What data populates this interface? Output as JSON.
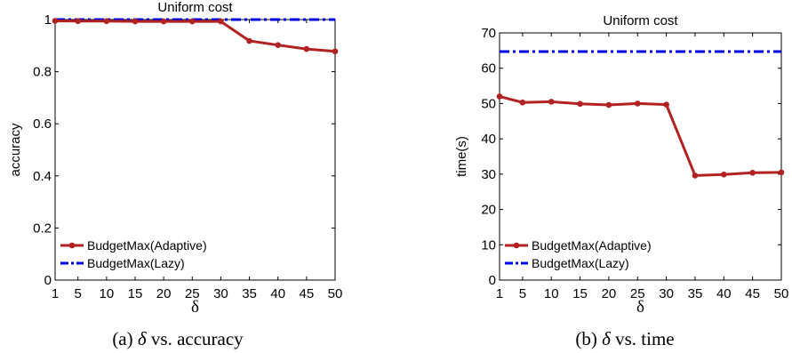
{
  "chart_data": [
    {
      "type": "line",
      "title": "Uniform cost",
      "xlabel": "δ",
      "ylabel": "accuracy",
      "x": [
        1,
        5,
        10,
        15,
        20,
        25,
        30,
        35,
        40,
        45,
        50
      ],
      "xlim": [
        1,
        50
      ],
      "ylim": [
        0,
        1
      ],
      "yticks": [
        0,
        0.2,
        0.4,
        0.6,
        0.8,
        1
      ],
      "ytick_labels": [
        "0",
        "0.2",
        "0.4",
        "0.6",
        "0.8",
        "1"
      ],
      "series": [
        {
          "name": "BudgetMax(Adaptive)",
          "color": "#b22222",
          "style": "solid-markers",
          "values": [
            0.995,
            0.994,
            0.994,
            0.993,
            0.993,
            0.993,
            0.993,
            0.918,
            0.902,
            0.887,
            0.878
          ]
        },
        {
          "name": "BudgetMax(Lazy)",
          "color": "#0000e0",
          "style": "dash-dot",
          "values": [
            1.0,
            1.0,
            1.0,
            1.0,
            1.0,
            1.0,
            1.0,
            1.0,
            1.0,
            1.0,
            1.0
          ]
        }
      ],
      "legend": "bottom-left",
      "grid": false,
      "caption": {
        "label": "(a) ",
        "symbol": "δ",
        "text": " vs. accuracy"
      }
    },
    {
      "type": "line",
      "title": "Uniform cost",
      "xlabel": "δ",
      "ylabel": "time(s)",
      "x": [
        1,
        5,
        10,
        15,
        20,
        25,
        30,
        35,
        40,
        45,
        50
      ],
      "xlim": [
        1,
        50
      ],
      "ylim": [
        0,
        70
      ],
      "yticks": [
        0,
        10,
        20,
        30,
        40,
        50,
        60,
        70
      ],
      "ytick_labels": [
        "0",
        "10",
        "20",
        "30",
        "40",
        "50",
        "60",
        "70"
      ],
      "series": [
        {
          "name": "BudgetMax(Adaptive)",
          "color": "#b22222",
          "style": "solid-markers",
          "values": [
            52.0,
            50.3,
            50.5,
            49.9,
            49.6,
            50.0,
            49.7,
            29.6,
            29.9,
            30.4,
            30.5
          ]
        },
        {
          "name": "BudgetMax(Lazy)",
          "color": "#0000e0",
          "style": "dash-dot",
          "values": [
            64.7,
            64.7,
            64.7,
            64.7,
            64.7,
            64.7,
            64.7,
            64.7,
            64.7,
            64.7,
            64.7
          ]
        }
      ],
      "legend": "bottom-left",
      "grid": false,
      "caption": {
        "label": "(b) ",
        "symbol": "δ",
        "text": " vs. time"
      }
    }
  ]
}
